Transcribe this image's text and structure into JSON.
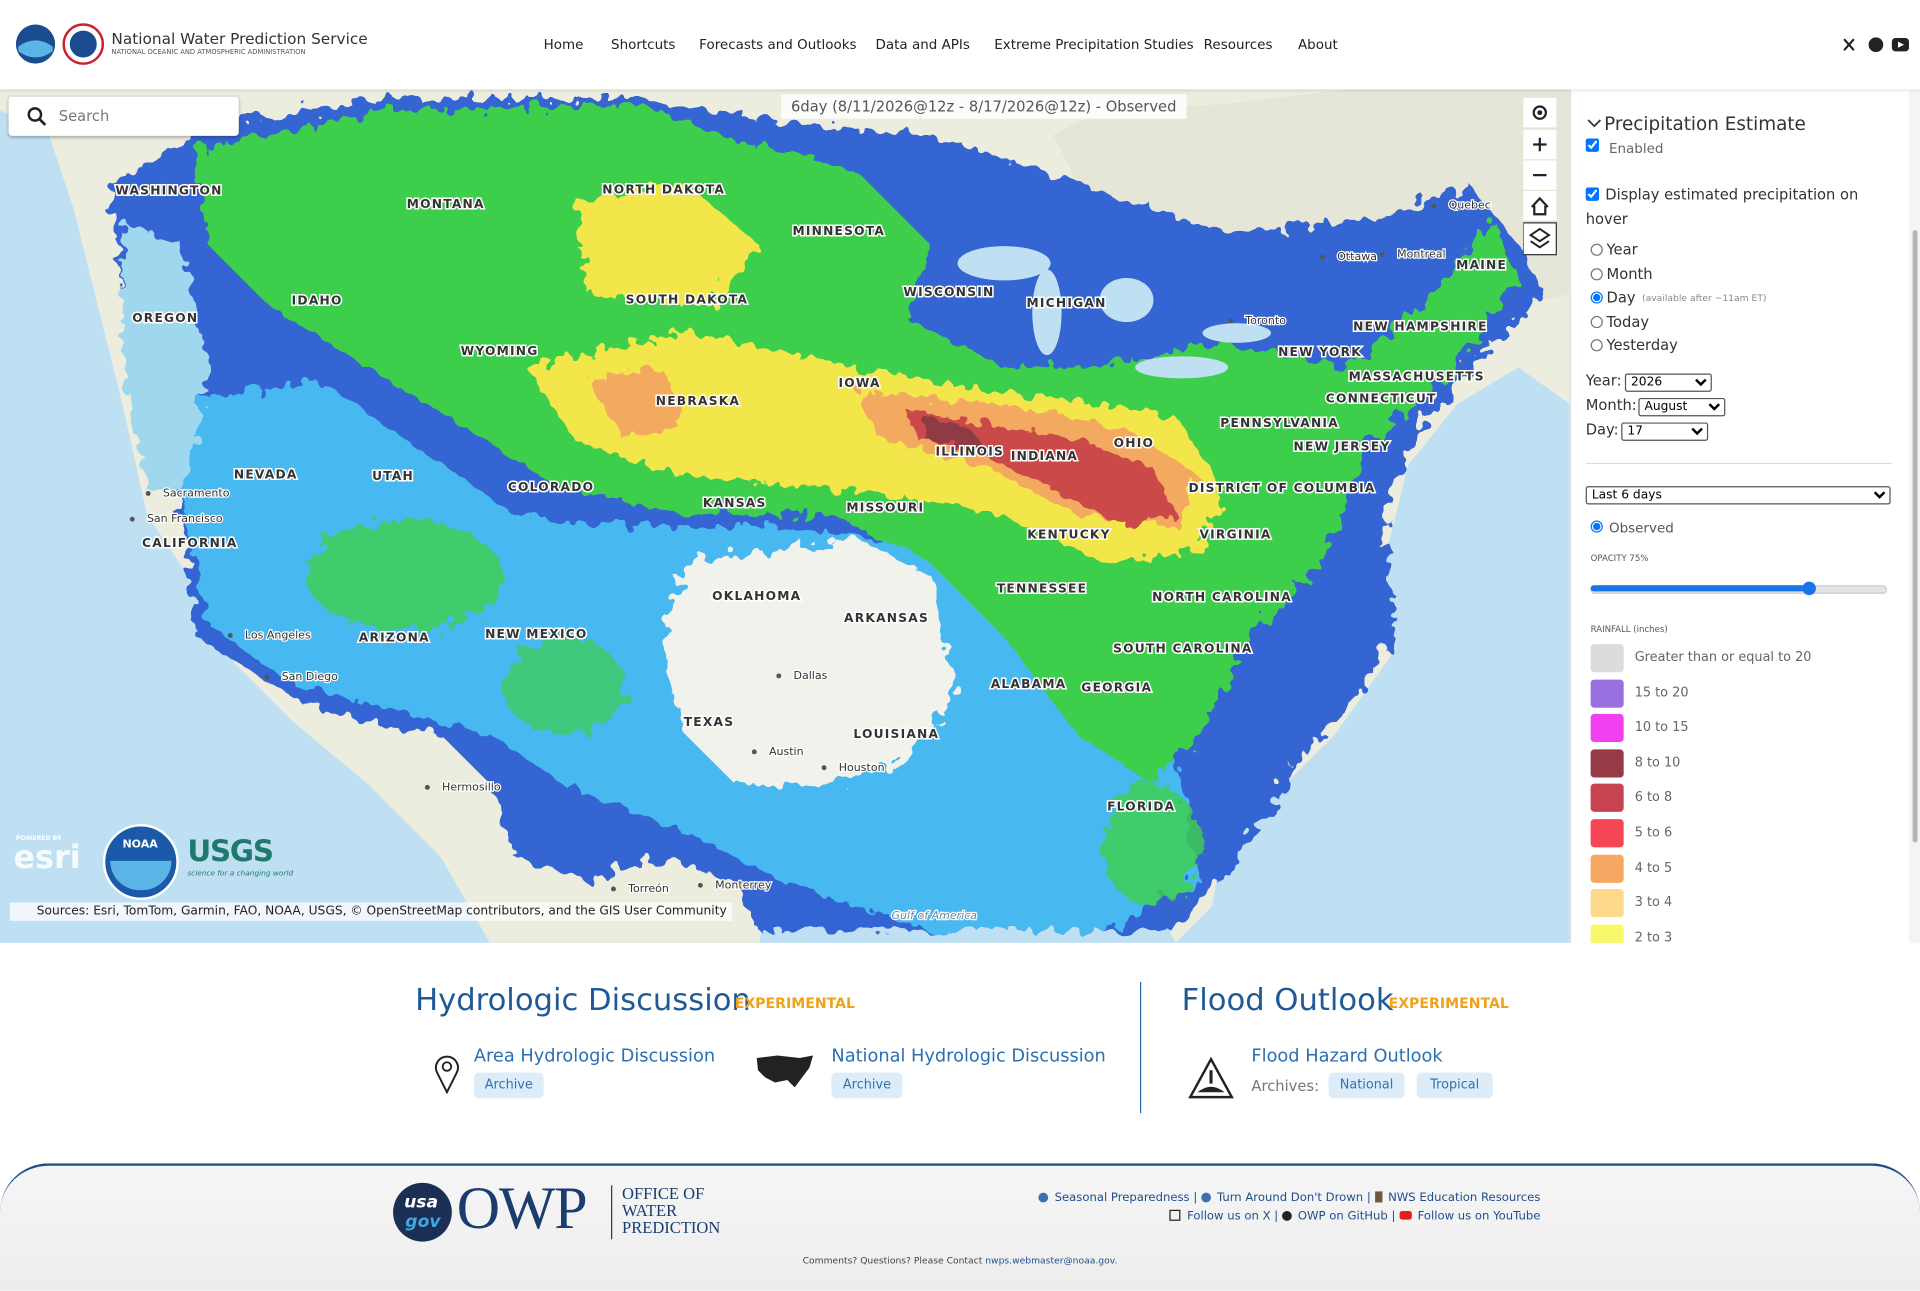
{
  "header": {
    "title": "National Water Prediction Service",
    "subtitle": "NATIONAL OCEANIC AND ATMOSPHERIC ADMINISTRATION",
    "nav": [
      "Home",
      "Shortcuts",
      "Forecasts and Outlooks",
      "Data and APIs",
      "Extreme Precipitation Studies",
      "Resources",
      "About"
    ]
  },
  "map": {
    "search_placeholder": "Search",
    "layer_title": "6day (8/11/2026@12z - 8/17/2026@12z) - Observed",
    "states": [
      "WASHINGTON",
      "MONTANA",
      "NORTH DAKOTA",
      "MINNESOTA",
      "IDAHO",
      "OREGON",
      "SOUTH DAKOTA",
      "WISCONSIN",
      "MICHIGAN",
      "WYOMING",
      "NEBRASKA",
      "IOWA",
      "ILLINOIS",
      "INDIANA",
      "OHIO",
      "PENNSYLVANIA",
      "NEW YORK",
      "MAINE",
      "NEW HAMPSHIRE",
      "MASSACHUSETTS",
      "CONNECTICUT",
      "NEW JERSEY",
      "DISTRICT OF COLUMBIA",
      "NEVADA",
      "UTAH",
      "COLORADO",
      "KANSAS",
      "MISSOURI",
      "KENTUCKY",
      "VIRGINIA",
      "CALIFORNIA",
      "ARIZONA",
      "NEW MEXICO",
      "OKLAHOMA",
      "ARKANSAS",
      "TENNESSEE",
      "NORTH CAROLINA",
      "SOUTH CAROLINA",
      "ALABAMA",
      "GEORGIA",
      "TEXAS",
      "LOUISIANA",
      "FLORIDA"
    ],
    "places": [
      "Ottawa",
      "Montreal",
      "Quebec",
      "Toronto",
      "Sacramento",
      "San Francisco",
      "Los Angeles",
      "San Diego",
      "Dallas",
      "Austin",
      "Houston",
      "Hermosillo",
      "Torreón",
      "Monterrey",
      "Gulf of America"
    ],
    "logos": {
      "esri_caption": "POWERED BY",
      "esri": "esri",
      "noaa": "NOAA",
      "usgs": "USGS",
      "usgs_tagline": "science for a changing world"
    },
    "attribution": "Sources: Esri, TomTom, Garmin, FAO, NOAA, USGS, © OpenStreetMap contributors, and the GIS User Community"
  },
  "panel": {
    "title": "Precipitation Estimate",
    "enabled": "Enabled",
    "hover": "Display estimated precipitation on hover",
    "periods": [
      "Year",
      "Month",
      "Day",
      "Today",
      "Yesterday"
    ],
    "day_note": "(available after ~11am ET)",
    "year_label": "Year:",
    "year": "2026",
    "month_label": "Month:",
    "month": "August",
    "day_label": "Day:",
    "day": "17",
    "range": "Last 6 days",
    "observed": "Observed",
    "opacity": "OPACITY 75%",
    "legend_title": "RAINFALL (inches)",
    "legend": [
      {
        "label": "Greater than or equal to 20",
        "color": "#dcdcdc"
      },
      {
        "label": "15 to 20",
        "color": "#9a6fe0"
      },
      {
        "label": "10 to 15",
        "color": "#f23ff0"
      },
      {
        "label": "8 to 10",
        "color": "#963a46"
      },
      {
        "label": "6 to 8",
        "color": "#c6434f"
      },
      {
        "label": "5 to 6",
        "color": "#f54656"
      },
      {
        "label": "4 to 5",
        "color": "#f6a862"
      },
      {
        "label": "3 to 4",
        "color": "#fcd98b"
      },
      {
        "label": "2 to 3",
        "color": "#f8f86a"
      }
    ]
  },
  "discussion": {
    "title": "Hydrologic Discussion",
    "tag": "EXPERIMENTAL",
    "items": [
      {
        "label": "Area Hydrologic Discussion",
        "button": "Archive"
      },
      {
        "label": "National Hydrologic Discussion",
        "button": "Archive"
      }
    ]
  },
  "flood": {
    "title": "Flood Outlook",
    "tag": "EXPERIMENTAL",
    "item": "Flood Hazard Outlook",
    "archives_label": "Archives:",
    "buttons": [
      "National",
      "Tropical"
    ]
  },
  "footer": {
    "usagov": [
      "usa",
      "gov"
    ],
    "owp": "OWP",
    "office": [
      "OFFICE OF",
      "WATER",
      "PREDICTION"
    ],
    "links_row1": [
      "Seasonal Preparedness",
      "Turn Around Don't Drown",
      "NWS Education Resources"
    ],
    "links_row2": [
      "Follow us on X",
      "OWP on GitHub",
      "Follow us on YouTube"
    ],
    "contact": "Comments? Questions? Please Contact",
    "email": "nwps.webmaster@noaa.gov."
  }
}
